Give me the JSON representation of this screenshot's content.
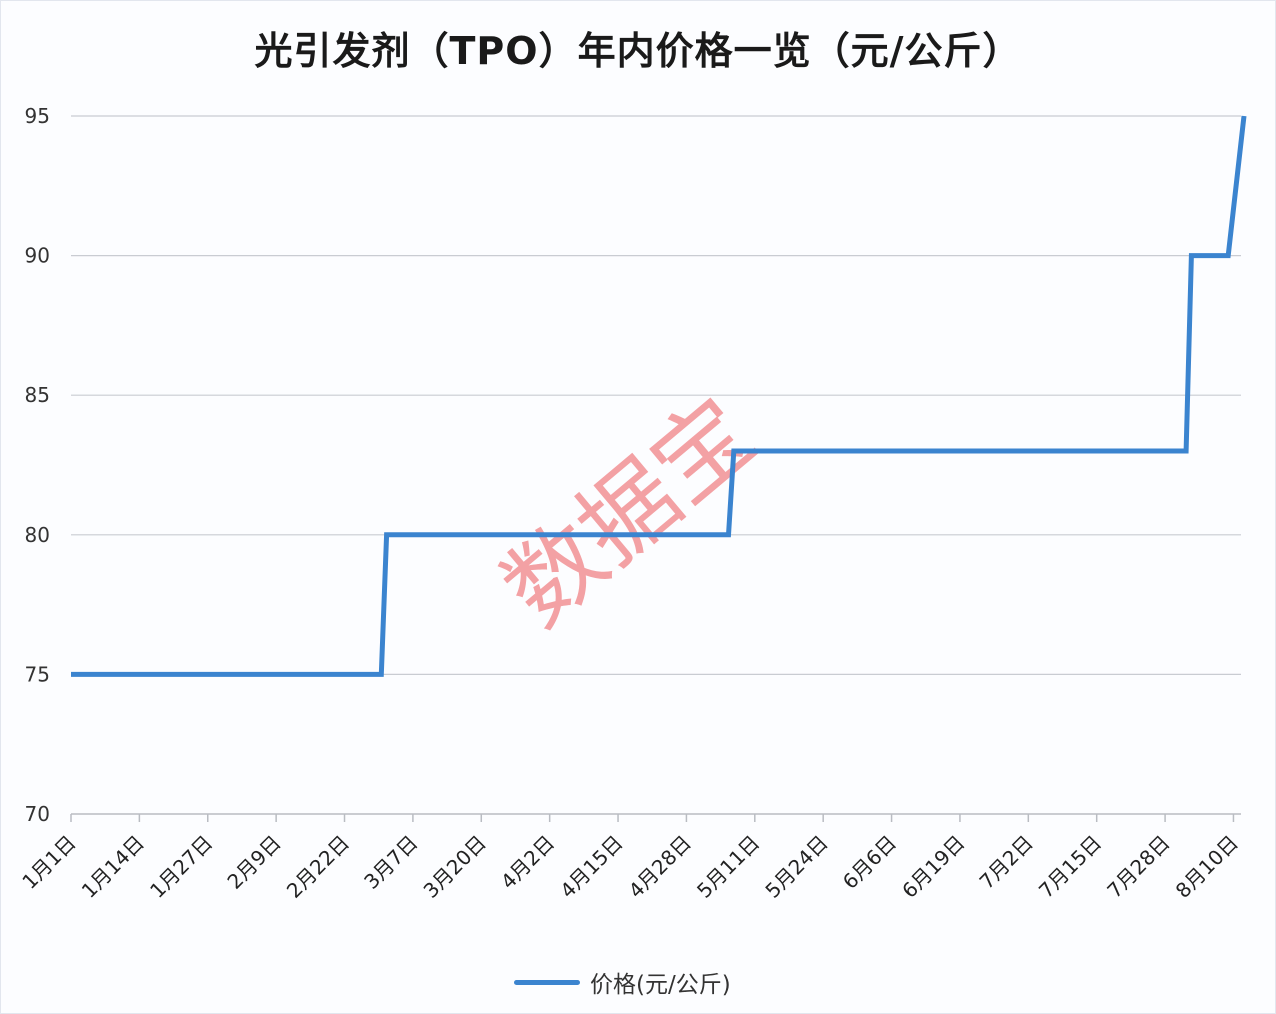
{
  "chart_data": {
    "type": "line",
    "subtype": "step",
    "title": "光引发剂（TPO）年内价格一览（元/公斤）",
    "xlabel": "",
    "ylabel": "",
    "ylim": [
      70,
      95
    ],
    "yticks": [
      70,
      75,
      80,
      85,
      90,
      95
    ],
    "grid": true,
    "legend_position": "bottom",
    "categories": [
      "1月1日",
      "1月14日",
      "1月27日",
      "2月9日",
      "2月22日",
      "3月7日",
      "3月20日",
      "4月2日",
      "4月15日",
      "4月28日",
      "5月11日",
      "5月24日",
      "6月6日",
      "6月19日",
      "7月2日",
      "7月15日",
      "7月28日",
      "8月10日"
    ],
    "series": [
      {
        "name": "价格(元/公斤)",
        "color": "#3b84cf",
        "points": [
          {
            "x": "1月1日",
            "y": 75
          },
          {
            "x": "3月1日",
            "y": 75
          },
          {
            "x": "3月2日",
            "y": 80
          },
          {
            "x": "5月6日",
            "y": 80
          },
          {
            "x": "5月7日",
            "y": 83
          },
          {
            "x": "8月1日",
            "y": 83
          },
          {
            "x": "8月2日",
            "y": 90
          },
          {
            "x": "8月9日",
            "y": 90
          },
          {
            "x": "8月12日",
            "y": 95
          }
        ]
      }
    ],
    "watermark": "数据宝"
  },
  "legend": {
    "label": "价格(元/公斤)"
  }
}
